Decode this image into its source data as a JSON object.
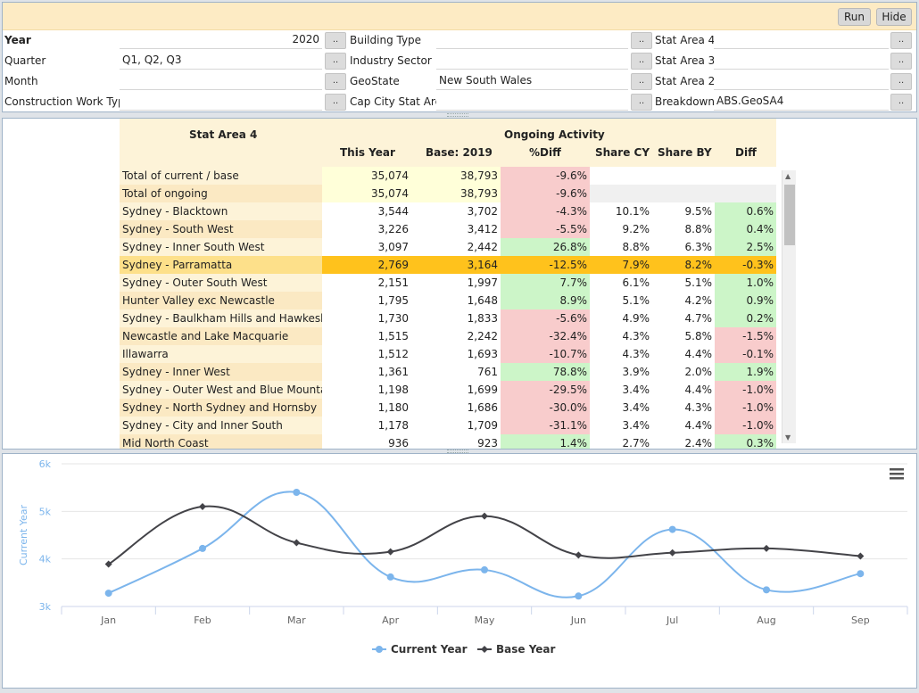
{
  "toolbar": {
    "run_label": "Run",
    "hide_label": "Hide"
  },
  "filters": {
    "dd_label": "..",
    "year": {
      "label": "Year",
      "value": "2020"
    },
    "quarter": {
      "label": "Quarter",
      "value": "Q1, Q2, Q3"
    },
    "month": {
      "label": "Month",
      "value": ""
    },
    "construction_work_type": {
      "label": "Construction Work Type",
      "value": ""
    },
    "building_type": {
      "label": "Building Type",
      "value": ""
    },
    "industry_sector": {
      "label": "Industry Sector",
      "value": ""
    },
    "geostate": {
      "label": "GeoState",
      "value": "New South Wales"
    },
    "cap_city_stat_area": {
      "label": "Cap City Stat Area",
      "value": ""
    },
    "stat_area_4": {
      "label": "Stat Area 4",
      "value": ""
    },
    "stat_area_3": {
      "label": "Stat Area 3",
      "value": ""
    },
    "stat_area_2": {
      "label": "Stat Area 2",
      "value": ""
    },
    "breakdowns": {
      "label": "Breakdowns",
      "value": "ABS.GeoSA4"
    }
  },
  "table": {
    "group_header": "Ongoing Activity",
    "columns": {
      "name": "Stat Area 4",
      "this_year": "This Year",
      "base": "Base: 2019",
      "pct_diff": "%Diff",
      "share_cy": "Share CY",
      "share_by": "Share BY",
      "diff": "Diff"
    },
    "rows": [
      {
        "name": "Total of current / base",
        "cy": "35,074",
        "by": "38,793",
        "pd": "-9.6%",
        "scy": "",
        "sby": "",
        "d": ""
      },
      {
        "name": "Total of ongoing",
        "cy": "35,074",
        "by": "38,793",
        "pd": "-9.6%",
        "scy": "",
        "sby": "",
        "d": ""
      },
      {
        "name": "Sydney - Blacktown",
        "cy": "3,544",
        "by": "3,702",
        "pd": "-4.3%",
        "scy": "10.1%",
        "sby": "9.5%",
        "d": "0.6%"
      },
      {
        "name": "Sydney - South West",
        "cy": "3,226",
        "by": "3,412",
        "pd": "-5.5%",
        "scy": "9.2%",
        "sby": "8.8%",
        "d": "0.4%"
      },
      {
        "name": "Sydney - Inner South West",
        "cy": "3,097",
        "by": "2,442",
        "pd": "26.8%",
        "scy": "8.8%",
        "sby": "6.3%",
        "d": "2.5%"
      },
      {
        "name": "Sydney - Parramatta",
        "cy": "2,769",
        "by": "3,164",
        "pd": "-12.5%",
        "scy": "7.9%",
        "sby": "8.2%",
        "d": "-0.3%"
      },
      {
        "name": "Sydney - Outer South West",
        "cy": "2,151",
        "by": "1,997",
        "pd": "7.7%",
        "scy": "6.1%",
        "sby": "5.1%",
        "d": "1.0%"
      },
      {
        "name": "Hunter Valley exc Newcastle",
        "cy": "1,795",
        "by": "1,648",
        "pd": "8.9%",
        "scy": "5.1%",
        "sby": "4.2%",
        "d": "0.9%"
      },
      {
        "name": "Sydney - Baulkham Hills and Hawkesbury",
        "cy": "1,730",
        "by": "1,833",
        "pd": "-5.6%",
        "scy": "4.9%",
        "sby": "4.7%",
        "d": "0.2%"
      },
      {
        "name": "Newcastle and Lake Macquarie",
        "cy": "1,515",
        "by": "2,242",
        "pd": "-32.4%",
        "scy": "4.3%",
        "sby": "5.8%",
        "d": "-1.5%"
      },
      {
        "name": "Illawarra",
        "cy": "1,512",
        "by": "1,693",
        "pd": "-10.7%",
        "scy": "4.3%",
        "sby": "4.4%",
        "d": "-0.1%"
      },
      {
        "name": "Sydney - Inner West",
        "cy": "1,361",
        "by": "761",
        "pd": "78.8%",
        "scy": "3.9%",
        "sby": "2.0%",
        "d": "1.9%"
      },
      {
        "name": "Sydney - Outer West and Blue Mountains",
        "cy": "1,198",
        "by": "1,699",
        "pd": "-29.5%",
        "scy": "3.4%",
        "sby": "4.4%",
        "d": "-1.0%"
      },
      {
        "name": "Sydney - North Sydney and Hornsby",
        "cy": "1,180",
        "by": "1,686",
        "pd": "-30.0%",
        "scy": "3.4%",
        "sby": "4.3%",
        "d": "-1.0%"
      },
      {
        "name": "Sydney - City and Inner South",
        "cy": "1,178",
        "by": "1,709",
        "pd": "-31.1%",
        "scy": "3.4%",
        "sby": "4.4%",
        "d": "-1.0%"
      },
      {
        "name": "Mid North Coast",
        "cy": "936",
        "by": "923",
        "pd": "1.4%",
        "scy": "2.7%",
        "sby": "2.4%",
        "d": "0.3%"
      }
    ],
    "selected_row": 5
  },
  "colors": {
    "header_bg": "#fdf3d8",
    "name_a": "#fdf3d8",
    "name_b": "#fbe9c3",
    "total_bg": "#ffffd9",
    "grey_bg": "#f0f0f0",
    "neg": "#f8cccc",
    "pos": "#ccf5c8",
    "selected": "#ffc21c",
    "selected_name": "#fde08a",
    "current_year": "#7cb5ec",
    "base_year": "#434348"
  },
  "chart_data": {
    "type": "line",
    "categories": [
      "Jan",
      "Feb",
      "Mar",
      "Apr",
      "May",
      "Jun",
      "Jul",
      "Aug",
      "Sep"
    ],
    "series": [
      {
        "name": "Current Year",
        "values": [
          3280,
          4220,
          5400,
          3620,
          3770,
          3220,
          4620,
          3350,
          3690
        ]
      },
      {
        "name": "Base Year",
        "values": [
          3890,
          5100,
          4340,
          4150,
          4900,
          4080,
          4130,
          4220,
          4060
        ]
      }
    ],
    "yticks": [
      "3k",
      "4k",
      "5k",
      "6k"
    ],
    "ylabel": "Current Year",
    "xlabel": "",
    "ylim": [
      3000,
      6000
    ],
    "grid": true,
    "legend": "bottom-center"
  },
  "chart_menu_icon": "hamburger-menu-icon"
}
